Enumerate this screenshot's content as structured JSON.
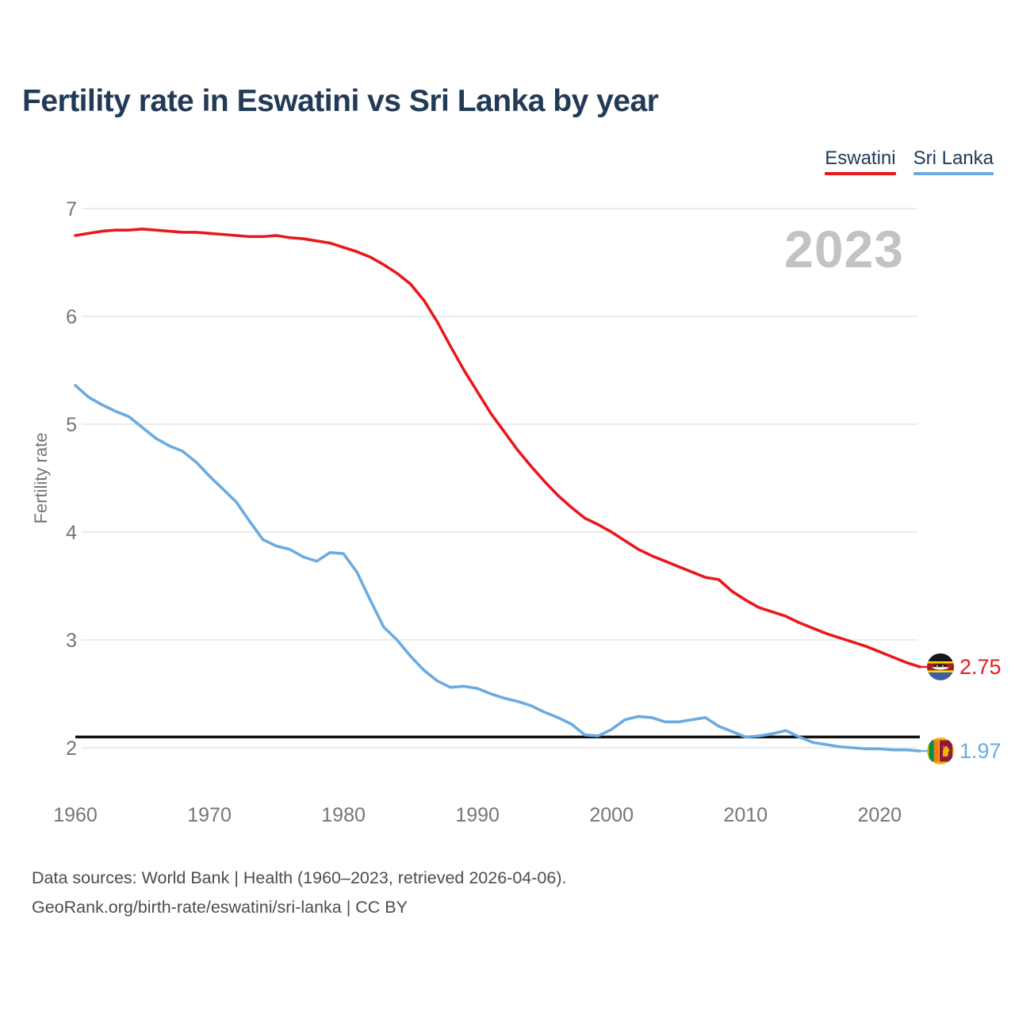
{
  "title": "Fertility rate in Eswatini vs Sri Lanka by year",
  "watermark": "2023",
  "legend": [
    {
      "label": "Eswatini",
      "color": "#e8191d"
    },
    {
      "label": "Sri Lanka",
      "color": "#6cabe0"
    }
  ],
  "y_axis": {
    "label": "Fertility rate",
    "ticks": [
      7,
      6,
      5,
      4,
      3,
      2
    ]
  },
  "x_axis": {
    "ticks": [
      1960,
      1970,
      1980,
      1990,
      2000,
      2010,
      2020
    ]
  },
  "reference_line": {
    "value": 2.1,
    "color": "#111111"
  },
  "end_labels": [
    {
      "series": "Eswatini",
      "value": "2.75",
      "color": "#e8191d",
      "icon": "eswatini-flag-icon"
    },
    {
      "series": "Sri Lanka",
      "value": "1.97",
      "color": "#6cabe0",
      "icon": "sri-lanka-flag-icon"
    }
  ],
  "footer": {
    "line1": "Data sources: World Bank | Health (1960–2023, retrieved 2026-04-06).",
    "line2": "GeoRank.org/birth-rate/eswatini/sri-lanka | CC BY"
  },
  "chart_data": {
    "type": "line",
    "title": "Fertility rate in Eswatini vs Sri Lanka by year",
    "xlabel": "",
    "ylabel": "Fertility rate",
    "xlim": [
      1960,
      2023
    ],
    "ylim": [
      2,
      7
    ],
    "grid": true,
    "legend_position": "top-right",
    "reference_line": 2.1,
    "x": [
      1960,
      1961,
      1962,
      1963,
      1964,
      1965,
      1966,
      1967,
      1968,
      1969,
      1970,
      1971,
      1972,
      1973,
      1974,
      1975,
      1976,
      1977,
      1978,
      1979,
      1980,
      1981,
      1982,
      1983,
      1984,
      1985,
      1986,
      1987,
      1988,
      1989,
      1990,
      1991,
      1992,
      1993,
      1994,
      1995,
      1996,
      1997,
      1998,
      1999,
      2000,
      2001,
      2002,
      2003,
      2004,
      2005,
      2006,
      2007,
      2008,
      2009,
      2010,
      2011,
      2012,
      2013,
      2014,
      2015,
      2016,
      2017,
      2018,
      2019,
      2020,
      2021,
      2022,
      2023
    ],
    "series": [
      {
        "name": "Eswatini",
        "color": "#e8191d",
        "final_value": 2.75,
        "values": [
          6.75,
          6.77,
          6.79,
          6.8,
          6.8,
          6.81,
          6.8,
          6.79,
          6.78,
          6.78,
          6.77,
          6.76,
          6.75,
          6.74,
          6.74,
          6.75,
          6.73,
          6.72,
          6.7,
          6.68,
          6.64,
          6.6,
          6.55,
          6.48,
          6.4,
          6.3,
          6.15,
          5.95,
          5.72,
          5.5,
          5.3,
          5.1,
          4.93,
          4.76,
          4.61,
          4.47,
          4.34,
          4.23,
          4.13,
          4.07,
          4.0,
          3.92,
          3.84,
          3.78,
          3.73,
          3.68,
          3.63,
          3.58,
          3.56,
          3.45,
          3.37,
          3.3,
          3.26,
          3.22,
          3.16,
          3.11,
          3.06,
          3.02,
          2.98,
          2.94,
          2.89,
          2.84,
          2.79,
          2.75
        ]
      },
      {
        "name": "Sri Lanka",
        "color": "#6cabe0",
        "final_value": 1.97,
        "values": [
          5.36,
          5.25,
          5.18,
          5.12,
          5.07,
          4.97,
          4.87,
          4.8,
          4.75,
          4.65,
          4.52,
          4.4,
          4.28,
          4.1,
          3.93,
          3.87,
          3.84,
          3.77,
          3.73,
          3.81,
          3.8,
          3.63,
          3.37,
          3.12,
          3.0,
          2.85,
          2.72,
          2.62,
          2.56,
          2.57,
          2.55,
          2.5,
          2.46,
          2.43,
          2.39,
          2.33,
          2.28,
          2.22,
          2.12,
          2.11,
          2.17,
          2.26,
          2.29,
          2.28,
          2.24,
          2.24,
          2.26,
          2.28,
          2.2,
          2.15,
          2.1,
          2.11,
          2.13,
          2.16,
          2.1,
          2.05,
          2.03,
          2.01,
          2.0,
          1.99,
          1.99,
          1.98,
          1.98,
          1.97
        ]
      }
    ]
  }
}
